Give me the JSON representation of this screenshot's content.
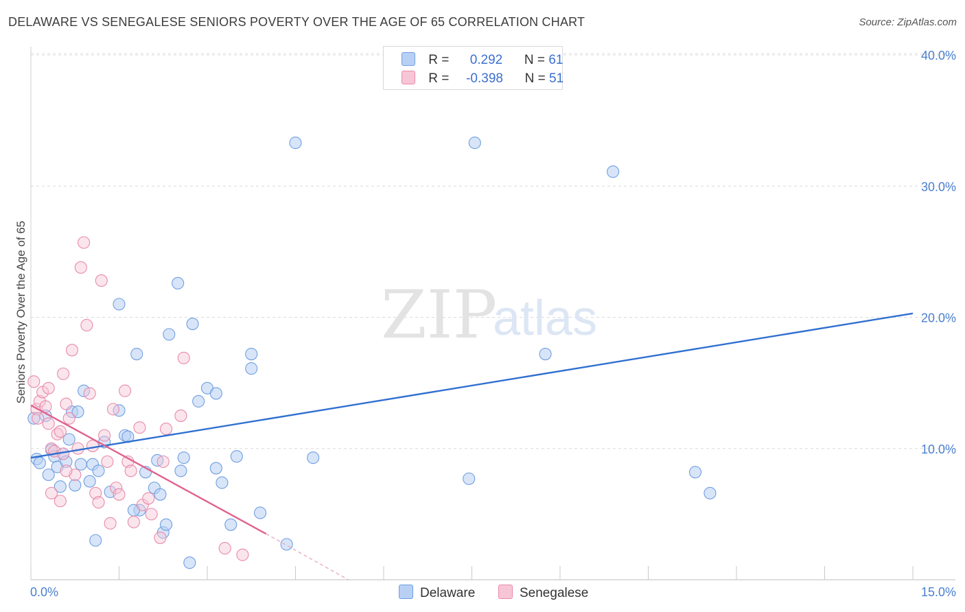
{
  "title": "DELAWARE VS SENEGALESE SENIORS POVERTY OVER THE AGE OF 65 CORRELATION CHART",
  "source": "Source: ZipAtlas.com",
  "watermark": {
    "zip": "ZIP",
    "atlas": "atlas"
  },
  "legend": {
    "r_label": "R =",
    "n_label": "N =",
    "rows": [
      {
        "name": "Delaware",
        "r": "0.292",
        "n": "61",
        "fill": "#b8d0f4",
        "stroke": "#6f9ee0"
      },
      {
        "name": "Senegalese",
        "r": "-0.398",
        "n": "51",
        "fill": "#f7c6d6",
        "stroke": "#e88aa8"
      }
    ]
  },
  "chart_data": {
    "type": "scatter",
    "title": "DELAWARE VS SENEGALESE SENIORS POVERTY OVER THE AGE OF 65 CORRELATION CHART",
    "xlabel": "",
    "ylabel": "Seniors Poverty Over the Age of 65",
    "xlim": [
      0,
      15
    ],
    "ylim": [
      0,
      40
    ],
    "x_tick_labels": [
      "0.0%",
      "15.0%"
    ],
    "y_ticks": [
      10,
      20,
      30,
      40
    ],
    "y_tick_labels": [
      "10.0%",
      "20.0%",
      "30.0%",
      "40.0%"
    ],
    "grid": "horizontal dashed",
    "series": [
      {
        "name": "Delaware",
        "color": "#5b8fdb",
        "points": [
          [
            0.05,
            12.3
          ],
          [
            0.1,
            9.2
          ],
          [
            0.15,
            8.9
          ],
          [
            0.25,
            12.5
          ],
          [
            0.3,
            8.0
          ],
          [
            0.35,
            9.9
          ],
          [
            0.4,
            9.4
          ],
          [
            0.45,
            8.6
          ],
          [
            0.5,
            7.1
          ],
          [
            0.55,
            9.6
          ],
          [
            0.6,
            9.0
          ],
          [
            0.65,
            10.7
          ],
          [
            0.7,
            12.8
          ],
          [
            0.75,
            7.2
          ],
          [
            0.8,
            12.8
          ],
          [
            0.85,
            8.8
          ],
          [
            0.9,
            14.4
          ],
          [
            1.0,
            7.5
          ],
          [
            1.05,
            8.8
          ],
          [
            1.1,
            3.0
          ],
          [
            1.15,
            8.3
          ],
          [
            1.25,
            10.5
          ],
          [
            1.35,
            6.7
          ],
          [
            1.5,
            12.9
          ],
          [
            1.6,
            11.0
          ],
          [
            1.65,
            10.9
          ],
          [
            1.5,
            21.0
          ],
          [
            1.85,
            5.3
          ],
          [
            1.75,
            5.3
          ],
          [
            1.8,
            17.2
          ],
          [
            1.95,
            8.2
          ],
          [
            2.1,
            7.0
          ],
          [
            2.15,
            9.1
          ],
          [
            2.2,
            6.5
          ],
          [
            2.25,
            3.6
          ],
          [
            2.3,
            4.2
          ],
          [
            2.35,
            18.7
          ],
          [
            2.5,
            22.6
          ],
          [
            2.55,
            8.3
          ],
          [
            2.6,
            9.3
          ],
          [
            2.7,
            1.3
          ],
          [
            2.75,
            19.5
          ],
          [
            2.85,
            13.6
          ],
          [
            3.0,
            14.6
          ],
          [
            3.15,
            14.2
          ],
          [
            3.15,
            8.5
          ],
          [
            3.25,
            7.4
          ],
          [
            3.4,
            4.2
          ],
          [
            3.5,
            9.4
          ],
          [
            3.75,
            17.2
          ],
          [
            3.75,
            16.1
          ],
          [
            3.9,
            5.1
          ],
          [
            4.35,
            2.7
          ],
          [
            4.5,
            33.3
          ],
          [
            4.8,
            9.3
          ],
          [
            7.55,
            33.3
          ],
          [
            7.45,
            7.7
          ],
          [
            8.75,
            17.2
          ],
          [
            9.9,
            31.1
          ],
          [
            11.3,
            8.2
          ],
          [
            11.55,
            6.6
          ]
        ],
        "trend": {
          "x1": 0.0,
          "y1": 9.3,
          "x2": 15.0,
          "y2": 20.3
        }
      },
      {
        "name": "Senegalese",
        "color": "#e57fa3",
        "points": [
          [
            0.05,
            15.1
          ],
          [
            0.1,
            13.0
          ],
          [
            0.12,
            12.3
          ],
          [
            0.15,
            13.6
          ],
          [
            0.2,
            14.3
          ],
          [
            0.25,
            13.2
          ],
          [
            0.3,
            11.9
          ],
          [
            0.35,
            10.0
          ],
          [
            0.4,
            9.8
          ],
          [
            0.45,
            11.1
          ],
          [
            0.5,
            11.3
          ],
          [
            0.55,
            15.7
          ],
          [
            0.6,
            13.4
          ],
          [
            0.65,
            12.3
          ],
          [
            0.3,
            14.6
          ],
          [
            0.7,
            17.5
          ],
          [
            0.75,
            8.0
          ],
          [
            0.8,
            10.0
          ],
          [
            0.85,
            23.8
          ],
          [
            0.9,
            25.7
          ],
          [
            0.95,
            19.4
          ],
          [
            1.0,
            14.2
          ],
          [
            1.05,
            10.2
          ],
          [
            1.1,
            6.6
          ],
          [
            1.15,
            5.9
          ],
          [
            1.2,
            22.8
          ],
          [
            1.25,
            11.0
          ],
          [
            1.3,
            9.0
          ],
          [
            1.35,
            4.3
          ],
          [
            1.4,
            13.0
          ],
          [
            1.45,
            7.0
          ],
          [
            1.5,
            6.5
          ],
          [
            1.6,
            14.4
          ],
          [
            1.65,
            9.0
          ],
          [
            1.7,
            8.3
          ],
          [
            1.75,
            4.4
          ],
          [
            1.85,
            11.6
          ],
          [
            1.9,
            5.7
          ],
          [
            2.0,
            6.2
          ],
          [
            2.05,
            5.0
          ],
          [
            2.2,
            3.2
          ],
          [
            2.25,
            9.0
          ],
          [
            2.3,
            11.5
          ],
          [
            2.55,
            12.5
          ],
          [
            2.6,
            16.9
          ],
          [
            0.35,
            6.6
          ],
          [
            0.5,
            6.0
          ],
          [
            0.6,
            8.3
          ],
          [
            0.55,
            9.6
          ],
          [
            3.3,
            2.4
          ],
          [
            3.6,
            1.9
          ]
        ],
        "trend": {
          "x1": 0.0,
          "y1": 13.3,
          "x2": 4.0,
          "y2": 3.5
        },
        "trend_extension": {
          "x1": 4.0,
          "y1": 3.5,
          "x2": 5.4,
          "y2": 0.0
        }
      }
    ]
  }
}
